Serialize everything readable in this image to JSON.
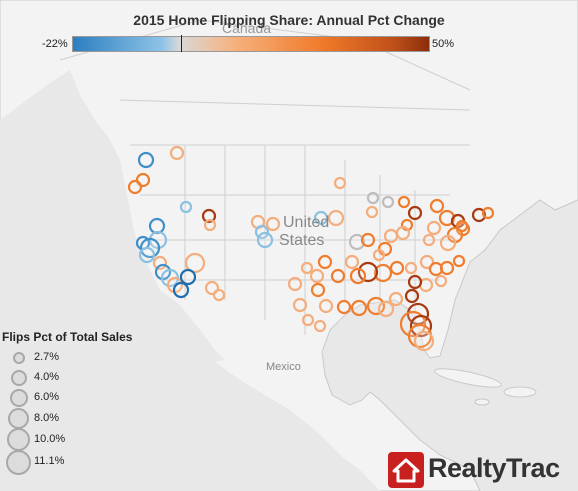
{
  "title": "2015 Home Flipping Share: Annual Pct Change",
  "color_scale": {
    "min_label": "-22%",
    "max_label": "50%"
  },
  "map_labels": {
    "canada": "Canada",
    "united": "United",
    "states": "States",
    "mexico": "Mexico"
  },
  "legend": {
    "title": "Flips Pct of Total Sales",
    "items": [
      "2.7%",
      "4.0%",
      "6.0%",
      "8.0%",
      "10.0%",
      "11.1%"
    ]
  },
  "logo": {
    "text": "RealtyTrac"
  },
  "colors": {
    "dark_red": "#a83a12",
    "orange": "#ef7d2e",
    "light_orange": "#f4ad7c",
    "gray": "#bdbdbd",
    "light_blue": "#8cc0e0",
    "blue": "#3f8fc9",
    "dark_blue": "#1f6fb0"
  }
}
